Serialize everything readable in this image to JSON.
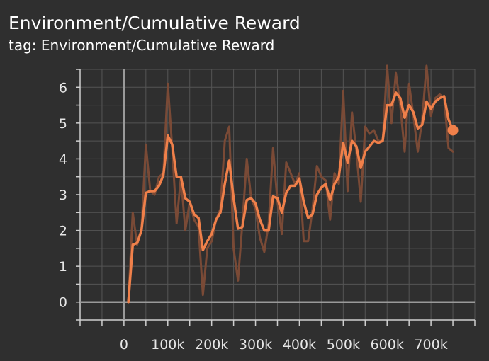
{
  "header": {
    "title": "Environment/Cumulative Reward",
    "tag": "tag: Environment/Cumulative Reward"
  },
  "colors": {
    "background": "#2f2f2f",
    "grid": "#555555",
    "zero_axis": "#9a9a9a",
    "smoothed": "#f0804a",
    "raw": "#7a4a36"
  },
  "chart_data": {
    "type": "line",
    "title": "Environment/Cumulative Reward",
    "xlabel": "",
    "ylabel": "",
    "xlim": [
      -100000,
      800000
    ],
    "ylim": [
      -0.5,
      6.5
    ],
    "grid": true,
    "x_ticks": [
      0,
      100000,
      200000,
      300000,
      400000,
      500000,
      600000,
      700000
    ],
    "x_tick_labels": [
      "0",
      "100k",
      "200k",
      "300k",
      "400k",
      "500k",
      "600k",
      "700k"
    ],
    "y_ticks": [
      0,
      1,
      2,
      3,
      4,
      5,
      6
    ],
    "y_tick_labels": [
      "0",
      "1",
      "2",
      "3",
      "4",
      "5",
      "6"
    ],
    "series": [
      {
        "role": "raw",
        "x": [
          10000,
          20000,
          30000,
          40000,
          50000,
          60000,
          70000,
          80000,
          90000,
          100000,
          110000,
          120000,
          130000,
          140000,
          150000,
          160000,
          170000,
          180000,
          190000,
          200000,
          210000,
          220000,
          230000,
          240000,
          250000,
          260000,
          270000,
          280000,
          290000,
          300000,
          310000,
          320000,
          330000,
          340000,
          350000,
          360000,
          370000,
          380000,
          390000,
          400000,
          410000,
          420000,
          430000,
          440000,
          450000,
          460000,
          470000,
          480000,
          490000,
          500000,
          510000,
          520000,
          530000,
          540000,
          550000,
          560000,
          570000,
          580000,
          590000,
          600000,
          610000,
          620000,
          630000,
          640000,
          650000,
          660000,
          670000,
          680000,
          690000,
          700000,
          710000,
          720000,
          730000,
          740000,
          750000
        ],
        "y": [
          0.0,
          2.5,
          1.6,
          2.0,
          4.4,
          3.1,
          3.0,
          3.5,
          3.6,
          6.1,
          4.3,
          2.2,
          3.5,
          2.0,
          2.8,
          2.3,
          2.1,
          0.2,
          1.5,
          1.7,
          2.3,
          2.6,
          4.5,
          4.9,
          1.5,
          0.6,
          2.2,
          4.0,
          2.9,
          2.6,
          1.8,
          1.4,
          2.2,
          4.3,
          2.8,
          1.9,
          3.9,
          3.6,
          3.3,
          3.6,
          1.7,
          1.7,
          2.6,
          3.8,
          3.5,
          3.4,
          2.3,
          3.6,
          3.3,
          5.9,
          3.1,
          5.3,
          4.2,
          2.8,
          4.9,
          4.7,
          4.8,
          4.5,
          4.5,
          6.6,
          5.0,
          6.4,
          5.5,
          4.2,
          6.1,
          5.2,
          4.2,
          5.1,
          6.6,
          5.2,
          5.7,
          5.8,
          5.7,
          4.3,
          4.2
        ]
      },
      {
        "role": "smoothed",
        "x": [
          10000,
          20000,
          30000,
          40000,
          50000,
          60000,
          70000,
          80000,
          90000,
          100000,
          110000,
          120000,
          130000,
          140000,
          150000,
          160000,
          170000,
          180000,
          190000,
          200000,
          210000,
          220000,
          230000,
          240000,
          250000,
          260000,
          270000,
          280000,
          290000,
          300000,
          310000,
          320000,
          330000,
          340000,
          350000,
          360000,
          370000,
          380000,
          390000,
          400000,
          410000,
          420000,
          430000,
          440000,
          450000,
          460000,
          470000,
          480000,
          490000,
          500000,
          510000,
          520000,
          530000,
          540000,
          550000,
          560000,
          570000,
          580000,
          590000,
          600000,
          610000,
          620000,
          630000,
          640000,
          650000,
          660000,
          670000,
          680000,
          690000,
          700000,
          710000,
          720000,
          730000,
          740000,
          750000
        ],
        "y": [
          0.0,
          1.6,
          1.65,
          2.0,
          3.05,
          3.1,
          3.1,
          3.25,
          3.55,
          4.65,
          4.4,
          3.5,
          3.5,
          2.9,
          2.8,
          2.45,
          2.35,
          1.45,
          1.7,
          1.9,
          2.3,
          2.5,
          3.3,
          3.95,
          2.9,
          2.05,
          2.1,
          2.85,
          2.9,
          2.75,
          2.3,
          2.0,
          2.0,
          2.95,
          2.9,
          2.5,
          3.05,
          3.25,
          3.25,
          3.45,
          2.8,
          2.35,
          2.45,
          3.0,
          3.2,
          3.3,
          2.85,
          3.3,
          3.5,
          4.45,
          3.9,
          4.5,
          4.35,
          3.75,
          4.2,
          4.35,
          4.5,
          4.45,
          4.5,
          5.5,
          5.5,
          5.85,
          5.7,
          5.15,
          5.5,
          5.3,
          4.85,
          4.95,
          5.6,
          5.4,
          5.6,
          5.7,
          5.75,
          5.1,
          4.8
        ]
      }
    ]
  }
}
